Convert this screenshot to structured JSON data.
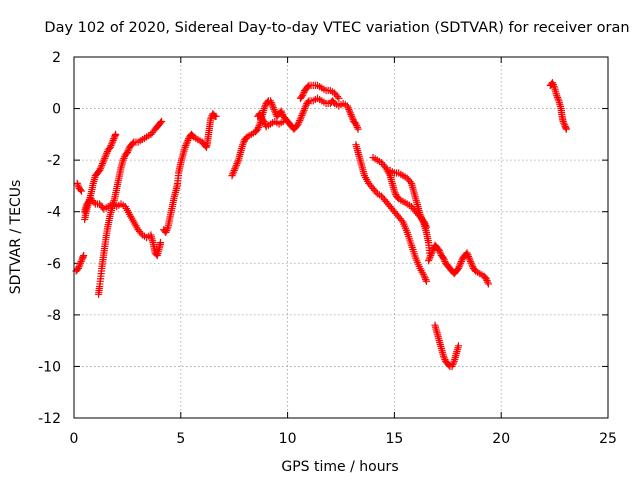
{
  "chart_data": {
    "type": "scatter",
    "title": "Day 102 of 2020, Sidereal Day-to-day VTEC variation (SDTVAR) for receiver oran",
    "xlabel": "GPS time / hours",
    "ylabel": "SDTVAR / TECUs",
    "xlim": [
      0,
      25
    ],
    "ylim": [
      -12,
      2
    ],
    "xticks": [
      0,
      5,
      10,
      15,
      20,
      25
    ],
    "xtick_labels": [
      "0",
      "5",
      "10",
      "15",
      "20",
      "25"
    ],
    "yticks": [
      2,
      0,
      -2,
      -4,
      -6,
      -8,
      -10,
      -12
    ],
    "ytick_labels": [
      "2",
      "0",
      "-2",
      "-4",
      "-6",
      "-8",
      "-10",
      "-12"
    ],
    "grid": true,
    "marker": "+",
    "color": "#ff0000",
    "series": [
      {
        "name": "arc1",
        "points": [
          [
            0.1,
            -6.3
          ],
          [
            0.2,
            -6.2
          ],
          [
            0.3,
            -6.0
          ],
          [
            0.4,
            -5.8
          ],
          [
            0.45,
            -5.7
          ]
        ]
      },
      {
        "name": "arc2",
        "points": [
          [
            0.15,
            -2.9
          ],
          [
            0.25,
            -3.1
          ],
          [
            0.35,
            -3.2
          ]
        ]
      },
      {
        "name": "arc3",
        "points": [
          [
            0.5,
            -4.3
          ],
          [
            0.6,
            -3.9
          ],
          [
            0.7,
            -3.6
          ],
          [
            0.8,
            -3.3
          ],
          [
            0.9,
            -2.9
          ],
          [
            1.0,
            -2.6
          ],
          [
            1.1,
            -2.5
          ],
          [
            1.2,
            -2.4
          ],
          [
            1.3,
            -2.2
          ],
          [
            1.4,
            -2.0
          ],
          [
            1.5,
            -1.8
          ],
          [
            1.6,
            -1.6
          ],
          [
            1.7,
            -1.5
          ],
          [
            1.8,
            -1.3
          ],
          [
            1.9,
            -1.1
          ],
          [
            1.95,
            -1.0
          ]
        ]
      },
      {
        "name": "arc4",
        "points": [
          [
            0.5,
            -4.0
          ],
          [
            0.6,
            -3.7
          ],
          [
            0.8,
            -3.5
          ],
          [
            1.0,
            -3.7
          ],
          [
            1.2,
            -3.7
          ],
          [
            1.4,
            -3.9
          ],
          [
            1.6,
            -3.8
          ],
          [
            1.8,
            -3.7
          ],
          [
            2.0,
            -3.8
          ],
          [
            2.2,
            -3.7
          ],
          [
            2.4,
            -3.8
          ],
          [
            2.6,
            -4.1
          ],
          [
            2.8,
            -4.4
          ],
          [
            3.0,
            -4.7
          ],
          [
            3.2,
            -4.9
          ],
          [
            3.4,
            -5.0
          ],
          [
            3.6,
            -4.9
          ],
          [
            3.7,
            -5.2
          ],
          [
            3.8,
            -5.6
          ],
          [
            3.9,
            -5.7
          ],
          [
            4.0,
            -5.4
          ],
          [
            4.05,
            -5.2
          ]
        ]
      },
      {
        "name": "arc5",
        "points": [
          [
            1.15,
            -7.2
          ],
          [
            1.2,
            -6.9
          ],
          [
            1.3,
            -6.2
          ],
          [
            1.4,
            -5.6
          ],
          [
            1.5,
            -5.0
          ],
          [
            1.6,
            -4.5
          ],
          [
            1.7,
            -4.1
          ],
          [
            1.8,
            -3.8
          ],
          [
            1.9,
            -3.5
          ],
          [
            2.0,
            -3.1
          ],
          [
            2.1,
            -2.7
          ],
          [
            2.2,
            -2.3
          ],
          [
            2.3,
            -2.0
          ],
          [
            2.4,
            -1.8
          ],
          [
            2.5,
            -1.7
          ],
          [
            2.6,
            -1.5
          ],
          [
            2.7,
            -1.4
          ],
          [
            2.8,
            -1.3
          ],
          [
            3.0,
            -1.3
          ],
          [
            3.2,
            -1.2
          ],
          [
            3.4,
            -1.1
          ],
          [
            3.6,
            -1.0
          ],
          [
            3.8,
            -0.8
          ],
          [
            3.9,
            -0.7
          ],
          [
            4.0,
            -0.6
          ],
          [
            4.1,
            -0.5
          ]
        ]
      },
      {
        "name": "arc6",
        "points": [
          [
            4.2,
            -4.7
          ],
          [
            4.3,
            -4.8
          ],
          [
            4.4,
            -4.6
          ],
          [
            4.5,
            -4.2
          ],
          [
            4.6,
            -3.8
          ],
          [
            4.7,
            -3.4
          ],
          [
            4.8,
            -3.1
          ],
          [
            4.85,
            -2.9
          ],
          [
            4.9,
            -2.5
          ],
          [
            5.0,
            -2.1
          ],
          [
            5.1,
            -1.8
          ],
          [
            5.2,
            -1.5
          ],
          [
            5.3,
            -1.3
          ],
          [
            5.4,
            -1.1
          ],
          [
            5.5,
            -1.0
          ],
          [
            5.6,
            -1.1
          ],
          [
            5.8,
            -1.2
          ],
          [
            6.0,
            -1.3
          ],
          [
            6.1,
            -1.4
          ],
          [
            6.2,
            -1.5
          ],
          [
            6.25,
            -1.3
          ],
          [
            6.3,
            -1.0
          ],
          [
            6.35,
            -0.7
          ],
          [
            6.4,
            -0.4
          ],
          [
            6.5,
            -0.2
          ],
          [
            6.6,
            -0.3
          ],
          [
            6.65,
            -0.3
          ]
        ]
      },
      {
        "name": "arc7",
        "points": [
          [
            7.4,
            -2.6
          ],
          [
            7.5,
            -2.4
          ],
          [
            7.6,
            -2.2
          ],
          [
            7.7,
            -2.0
          ],
          [
            7.8,
            -1.7
          ],
          [
            7.9,
            -1.4
          ],
          [
            8.0,
            -1.2
          ],
          [
            8.1,
            -1.1
          ],
          [
            8.3,
            -1.0
          ],
          [
            8.5,
            -0.9
          ],
          [
            8.6,
            -0.8
          ],
          [
            8.7,
            -0.6
          ],
          [
            8.8,
            -0.3
          ],
          [
            8.9,
            0.0
          ],
          [
            9.0,
            0.2
          ],
          [
            9.1,
            0.3
          ],
          [
            9.2,
            0.3
          ],
          [
            9.3,
            0.1
          ],
          [
            9.4,
            -0.1
          ],
          [
            9.5,
            -0.3
          ],
          [
            9.6,
            -0.2
          ],
          [
            9.7,
            -0.1
          ],
          [
            9.8,
            -0.3
          ],
          [
            9.9,
            -0.4
          ],
          [
            10.0,
            -0.5
          ],
          [
            10.1,
            -0.6
          ],
          [
            10.2,
            -0.7
          ],
          [
            10.3,
            -0.8
          ],
          [
            10.4,
            -0.7
          ],
          [
            10.5,
            -0.6
          ],
          [
            10.6,
            -0.4
          ],
          [
            10.7,
            -0.2
          ],
          [
            10.8,
            0.0
          ],
          [
            10.9,
            0.2
          ],
          [
            11.0,
            0.3
          ],
          [
            11.2,
            0.3
          ],
          [
            11.4,
            0.4
          ],
          [
            11.6,
            0.3
          ],
          [
            11.8,
            0.2
          ],
          [
            12.0,
            0.2
          ],
          [
            12.1,
            0.3
          ],
          [
            12.2,
            0.2
          ],
          [
            12.4,
            0.1
          ],
          [
            12.6,
            0.2
          ],
          [
            12.8,
            0.1
          ],
          [
            12.9,
            -0.1
          ],
          [
            13.0,
            -0.3
          ],
          [
            13.1,
            -0.5
          ],
          [
            13.2,
            -0.6
          ],
          [
            13.3,
            -0.8
          ]
        ]
      },
      {
        "name": "arc8",
        "points": [
          [
            8.6,
            -0.3
          ],
          [
            8.7,
            -0.2
          ],
          [
            8.8,
            -0.4
          ],
          [
            8.9,
            -0.5
          ],
          [
            9.0,
            -0.7
          ],
          [
            9.2,
            -0.6
          ],
          [
            9.4,
            -0.5
          ],
          [
            9.6,
            -0.6
          ],
          [
            9.8,
            -0.5
          ]
        ]
      },
      {
        "name": "arc9",
        "points": [
          [
            10.6,
            0.4
          ],
          [
            10.7,
            0.5
          ],
          [
            10.8,
            0.7
          ],
          [
            10.9,
            0.8
          ],
          [
            11.0,
            0.9
          ],
          [
            11.2,
            0.9
          ],
          [
            11.4,
            0.9
          ],
          [
            11.6,
            0.8
          ],
          [
            11.8,
            0.7
          ],
          [
            12.0,
            0.7
          ],
          [
            12.2,
            0.6
          ],
          [
            12.4,
            0.4
          ]
        ]
      },
      {
        "name": "arc10",
        "points": [
          [
            13.2,
            -1.4
          ],
          [
            13.3,
            -1.7
          ],
          [
            13.4,
            -2.0
          ],
          [
            13.5,
            -2.3
          ],
          [
            13.6,
            -2.6
          ],
          [
            13.8,
            -2.9
          ],
          [
            14.0,
            -3.1
          ],
          [
            14.2,
            -3.3
          ],
          [
            14.4,
            -3.4
          ],
          [
            14.6,
            -3.6
          ],
          [
            14.8,
            -3.8
          ],
          [
            15.0,
            -4.0
          ],
          [
            15.2,
            -4.2
          ],
          [
            15.4,
            -4.4
          ],
          [
            15.6,
            -4.8
          ],
          [
            15.8,
            -5.3
          ],
          [
            16.0,
            -5.8
          ],
          [
            16.2,
            -6.2
          ],
          [
            16.4,
            -6.5
          ],
          [
            16.5,
            -6.7
          ]
        ]
      },
      {
        "name": "arc11",
        "points": [
          [
            14.0,
            -1.9
          ],
          [
            14.2,
            -2.0
          ],
          [
            14.4,
            -2.1
          ],
          [
            14.6,
            -2.3
          ],
          [
            14.8,
            -2.6
          ],
          [
            14.9,
            -2.9
          ],
          [
            15.0,
            -3.2
          ],
          [
            15.1,
            -3.4
          ],
          [
            15.2,
            -3.5
          ],
          [
            15.4,
            -3.6
          ],
          [
            15.6,
            -3.7
          ],
          [
            15.8,
            -3.8
          ],
          [
            16.0,
            -4.0
          ],
          [
            16.2,
            -4.2
          ],
          [
            16.4,
            -4.4
          ],
          [
            16.5,
            -4.6
          ]
        ]
      },
      {
        "name": "arc12",
        "points": [
          [
            14.8,
            -2.4
          ],
          [
            15.0,
            -2.5
          ],
          [
            15.2,
            -2.5
          ],
          [
            15.4,
            -2.6
          ],
          [
            15.6,
            -2.7
          ],
          [
            15.8,
            -2.9
          ],
          [
            15.9,
            -3.2
          ],
          [
            16.0,
            -3.5
          ],
          [
            16.1,
            -3.8
          ],
          [
            16.2,
            -4.1
          ],
          [
            16.3,
            -4.3
          ],
          [
            16.4,
            -4.5
          ],
          [
            16.5,
            -4.8
          ],
          [
            16.6,
            -5.2
          ],
          [
            16.65,
            -5.6
          ]
        ]
      },
      {
        "name": "arc13",
        "points": [
          [
            16.6,
            -5.9
          ],
          [
            16.7,
            -5.7
          ],
          [
            16.8,
            -5.5
          ],
          [
            16.9,
            -5.3
          ],
          [
            17.0,
            -5.4
          ],
          [
            17.1,
            -5.5
          ],
          [
            17.2,
            -5.7
          ],
          [
            17.3,
            -5.8
          ],
          [
            17.4,
            -6.0
          ],
          [
            17.5,
            -6.1
          ],
          [
            17.6,
            -6.2
          ],
          [
            17.7,
            -6.3
          ],
          [
            17.8,
            -6.4
          ],
          [
            17.9,
            -6.3
          ],
          [
            18.0,
            -6.2
          ],
          [
            18.1,
            -6.0
          ],
          [
            18.2,
            -5.8
          ],
          [
            18.3,
            -5.7
          ],
          [
            18.4,
            -5.6
          ],
          [
            18.5,
            -5.8
          ],
          [
            18.6,
            -6.0
          ],
          [
            18.7,
            -6.2
          ],
          [
            18.8,
            -6.3
          ],
          [
            19.0,
            -6.4
          ],
          [
            19.2,
            -6.5
          ],
          [
            19.3,
            -6.6
          ],
          [
            19.4,
            -6.8
          ]
        ]
      },
      {
        "name": "arc14",
        "points": [
          [
            16.9,
            -8.4
          ],
          [
            17.0,
            -8.7
          ],
          [
            17.1,
            -9.0
          ],
          [
            17.2,
            -9.3
          ],
          [
            17.3,
            -9.6
          ],
          [
            17.4,
            -9.8
          ],
          [
            17.5,
            -9.9
          ],
          [
            17.6,
            -10.0
          ],
          [
            17.7,
            -10.0
          ],
          [
            17.8,
            -9.8
          ],
          [
            17.9,
            -9.5
          ],
          [
            18.0,
            -9.2
          ]
        ]
      },
      {
        "name": "arc15",
        "points": [
          [
            22.3,
            0.9
          ],
          [
            22.4,
            1.0
          ],
          [
            22.5,
            0.8
          ],
          [
            22.6,
            0.5
          ],
          [
            22.7,
            0.3
          ],
          [
            22.8,
            0.0
          ],
          [
            22.85,
            -0.3
          ],
          [
            22.9,
            -0.5
          ],
          [
            23.0,
            -0.7
          ],
          [
            23.05,
            -0.8
          ]
        ]
      }
    ]
  }
}
